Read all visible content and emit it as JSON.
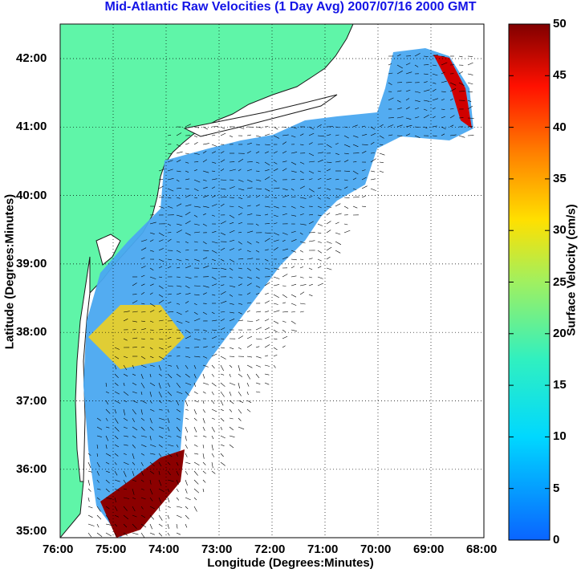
{
  "title": "Mid-Atlantic Raw Velocities (1 Day Avg) 2007/07/16 2000 GMT",
  "map": {
    "xlabel": "Longitude (Degrees:Minutes)",
    "ylabel": "Latitude (Degrees:Minutes)",
    "x_ticks": [
      "76:00",
      "75:00",
      "74:00",
      "73:00",
      "72:00",
      "71:00",
      "70:00",
      "69:00",
      "68:00"
    ],
    "y_ticks": [
      "42:00",
      "41:00",
      "40:00",
      "39:00",
      "38:00",
      "37:00",
      "36:00",
      "35:00"
    ],
    "land_color": "#5ff5a8",
    "coast_line_color": "#808080"
  },
  "colorbar": {
    "label": "Surface Velocity (cm/s)",
    "ticks": [
      "50",
      "45",
      "40",
      "35",
      "30",
      "25",
      "20",
      "15",
      "10",
      "5",
      "0"
    ],
    "range": [
      0,
      50
    ],
    "colormap": "jet"
  }
}
